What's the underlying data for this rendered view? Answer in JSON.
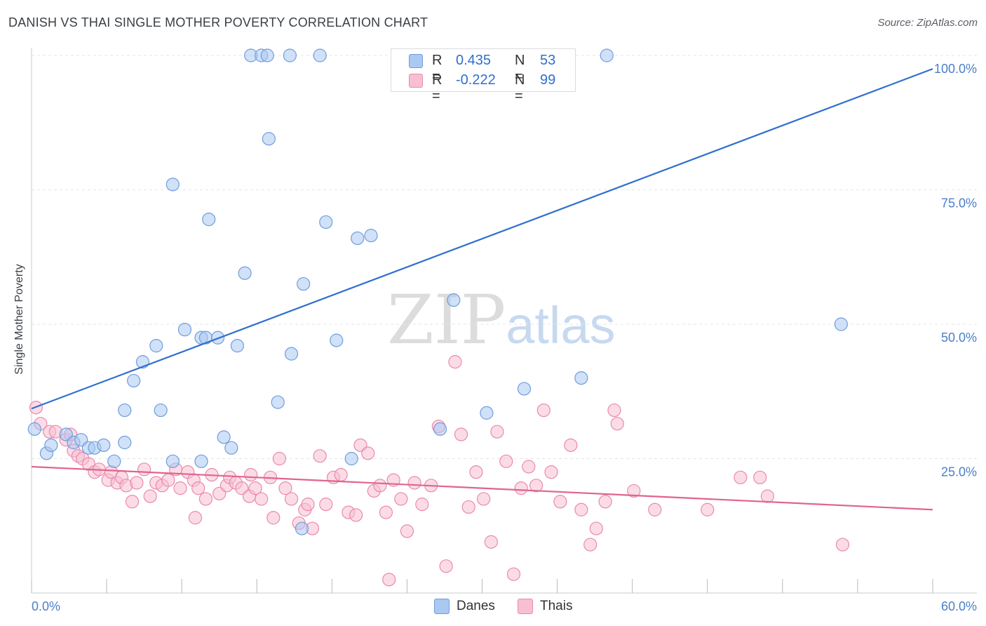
{
  "title": "DANISH VS THAI SINGLE MOTHER POVERTY CORRELATION CHART",
  "source": "Source: ZipAtlas.com",
  "watermark": {
    "zip": "ZIP",
    "atlas": "atlas"
  },
  "stats": [
    {
      "r_label": "R =",
      "r_value": "0.435",
      "n_label": "N =",
      "n_value": "53",
      "color": "#a9c8f2",
      "stroke": "#6f9ddc"
    },
    {
      "r_label": "R =",
      "r_value": "-0.222",
      "n_label": "N =",
      "n_value": "99",
      "color": "#f8bfd2",
      "stroke": "#e98aaa"
    }
  ],
  "legend": [
    {
      "label": "Danes",
      "color": "#a9c8f2",
      "stroke": "#6f9ddc"
    },
    {
      "label": "Thais",
      "color": "#f8bfd2",
      "stroke": "#e98aaa"
    }
  ],
  "chart_data": {
    "type": "scatter",
    "title": "DANISH VS THAI SINGLE MOTHER POVERTY CORRELATION CHART",
    "xlabel": "",
    "ylabel": "Single Mother Poverty",
    "xlim": [
      0,
      60
    ],
    "ylim": [
      0,
      100
    ],
    "x_tick_labels": [
      "0.0%",
      "60.0%"
    ],
    "y_tick_labels": [
      "25.0%",
      "50.0%",
      "75.0%",
      "100.0%"
    ],
    "y_ticks": [
      25,
      50,
      75,
      100
    ],
    "grid": true,
    "legend_position": "bottom-center",
    "series": [
      {
        "name": "Danes",
        "color": "#6f9ddc",
        "fill": "#a9c8f2",
        "trend": {
          "x": [
            0,
            60
          ],
          "y": [
            34.3,
            97.5
          ],
          "color": "#2f6fce"
        },
        "points": [
          [
            0.2,
            30.5
          ],
          [
            1.0,
            26.0
          ],
          [
            1.3,
            27.5
          ],
          [
            2.3,
            29.5
          ],
          [
            2.8,
            28.0
          ],
          [
            3.3,
            28.5
          ],
          [
            3.8,
            27.0
          ],
          [
            4.2,
            27.0
          ],
          [
            4.8,
            27.5
          ],
          [
            5.5,
            24.5
          ],
          [
            6.2,
            28.0
          ],
          [
            6.2,
            34.0
          ],
          [
            6.8,
            39.5
          ],
          [
            7.4,
            43.0
          ],
          [
            8.3,
            46.0
          ],
          [
            8.6,
            34.0
          ],
          [
            9.4,
            76.0
          ],
          [
            9.4,
            24.5
          ],
          [
            10.2,
            49.0
          ],
          [
            11.3,
            24.5
          ],
          [
            11.3,
            47.5
          ],
          [
            11.6,
            47.5
          ],
          [
            11.8,
            69.5
          ],
          [
            12.4,
            47.5
          ],
          [
            12.8,
            29.0
          ],
          [
            13.3,
            27.0
          ],
          [
            13.7,
            46.0
          ],
          [
            14.2,
            59.5
          ],
          [
            14.6,
            100.0
          ],
          [
            15.3,
            100.0
          ],
          [
            15.7,
            100.0
          ],
          [
            15.8,
            84.5
          ],
          [
            16.4,
            35.5
          ],
          [
            17.2,
            100.0
          ],
          [
            17.3,
            44.5
          ],
          [
            18.0,
            12.0
          ],
          [
            18.1,
            57.5
          ],
          [
            19.2,
            100.0
          ],
          [
            19.6,
            69.0
          ],
          [
            20.3,
            47.0
          ],
          [
            21.3,
            25.0
          ],
          [
            21.7,
            66.0
          ],
          [
            22.6,
            66.5
          ],
          [
            25.0,
            100.0
          ],
          [
            27.2,
            30.5
          ],
          [
            28.1,
            54.5
          ],
          [
            29.0,
            100.0
          ],
          [
            30.3,
            33.5
          ],
          [
            31.2,
            100.0
          ],
          [
            32.8,
            38.0
          ],
          [
            36.6,
            40.0
          ],
          [
            38.3,
            100.0
          ],
          [
            53.9,
            50.0
          ]
        ]
      },
      {
        "name": "Thais",
        "color": "#e98aaa",
        "fill": "#f8bfd2",
        "trend": {
          "x": [
            0,
            60
          ],
          "y": [
            23.5,
            15.5
          ],
          "color": "#e0648f"
        },
        "points": [
          [
            0.3,
            34.5
          ],
          [
            0.6,
            31.5
          ],
          [
            1.2,
            30.0
          ],
          [
            1.6,
            30.0
          ],
          [
            2.3,
            28.5
          ],
          [
            2.6,
            29.5
          ],
          [
            2.8,
            26.5
          ],
          [
            3.1,
            25.5
          ],
          [
            3.4,
            25.0
          ],
          [
            3.8,
            24.0
          ],
          [
            4.2,
            22.5
          ],
          [
            4.5,
            23.0
          ],
          [
            5.1,
            21.0
          ],
          [
            5.3,
            22.5
          ],
          [
            5.7,
            20.5
          ],
          [
            6.0,
            21.5
          ],
          [
            6.3,
            20.0
          ],
          [
            6.7,
            17.0
          ],
          [
            7.0,
            20.5
          ],
          [
            7.5,
            23.0
          ],
          [
            7.9,
            18.0
          ],
          [
            8.3,
            20.5
          ],
          [
            8.7,
            20.0
          ],
          [
            9.1,
            21.0
          ],
          [
            9.6,
            23.0
          ],
          [
            9.9,
            19.5
          ],
          [
            10.4,
            22.5
          ],
          [
            10.8,
            21.0
          ],
          [
            11.1,
            19.5
          ],
          [
            11.6,
            17.5
          ],
          [
            12.0,
            22.0
          ],
          [
            12.5,
            18.5
          ],
          [
            13.0,
            20.0
          ],
          [
            13.2,
            21.5
          ],
          [
            13.6,
            20.5
          ],
          [
            14.0,
            19.5
          ],
          [
            14.5,
            18.0
          ],
          [
            14.9,
            19.5
          ],
          [
            15.3,
            17.5
          ],
          [
            15.9,
            21.5
          ],
          [
            16.5,
            25.0
          ],
          [
            16.9,
            19.5
          ],
          [
            17.3,
            17.5
          ],
          [
            17.8,
            13.0
          ],
          [
            18.2,
            15.5
          ],
          [
            18.7,
            12.0
          ],
          [
            19.2,
            25.5
          ],
          [
            19.6,
            16.5
          ],
          [
            20.1,
            21.5
          ],
          [
            20.6,
            22.0
          ],
          [
            21.1,
            15.0
          ],
          [
            21.6,
            14.5
          ],
          [
            21.9,
            27.5
          ],
          [
            22.4,
            26.0
          ],
          [
            22.8,
            19.0
          ],
          [
            23.2,
            20.0
          ],
          [
            23.6,
            15.0
          ],
          [
            24.1,
            21.0
          ],
          [
            24.6,
            17.5
          ],
          [
            25.0,
            11.5
          ],
          [
            25.5,
            20.5
          ],
          [
            26.0,
            16.5
          ],
          [
            26.6,
            20.0
          ],
          [
            27.1,
            31.0
          ],
          [
            27.6,
            5.0
          ],
          [
            28.2,
            43.0
          ],
          [
            28.6,
            29.5
          ],
          [
            29.1,
            16.0
          ],
          [
            29.6,
            22.5
          ],
          [
            30.1,
            17.5
          ],
          [
            30.6,
            9.5
          ],
          [
            31.0,
            30.0
          ],
          [
            31.6,
            24.5
          ],
          [
            32.1,
            3.5
          ],
          [
            32.6,
            19.5
          ],
          [
            33.1,
            23.5
          ],
          [
            33.6,
            20.0
          ],
          [
            34.1,
            34.0
          ],
          [
            34.6,
            22.5
          ],
          [
            35.2,
            17.0
          ],
          [
            35.9,
            27.5
          ],
          [
            36.6,
            15.5
          ],
          [
            37.2,
            9.0
          ],
          [
            37.6,
            12.0
          ],
          [
            38.2,
            17.0
          ],
          [
            38.8,
            34.0
          ],
          [
            39.0,
            31.5
          ],
          [
            40.1,
            19.0
          ],
          [
            41.5,
            15.5
          ],
          [
            45.0,
            15.5
          ],
          [
            47.2,
            21.5
          ],
          [
            48.5,
            21.5
          ],
          [
            49.0,
            18.0
          ],
          [
            54.0,
            9.0
          ],
          [
            23.8,
            2.5
          ],
          [
            18.4,
            16.5
          ],
          [
            16.1,
            14.0
          ],
          [
            14.6,
            22.0
          ],
          [
            10.9,
            14.0
          ]
        ]
      }
    ]
  }
}
